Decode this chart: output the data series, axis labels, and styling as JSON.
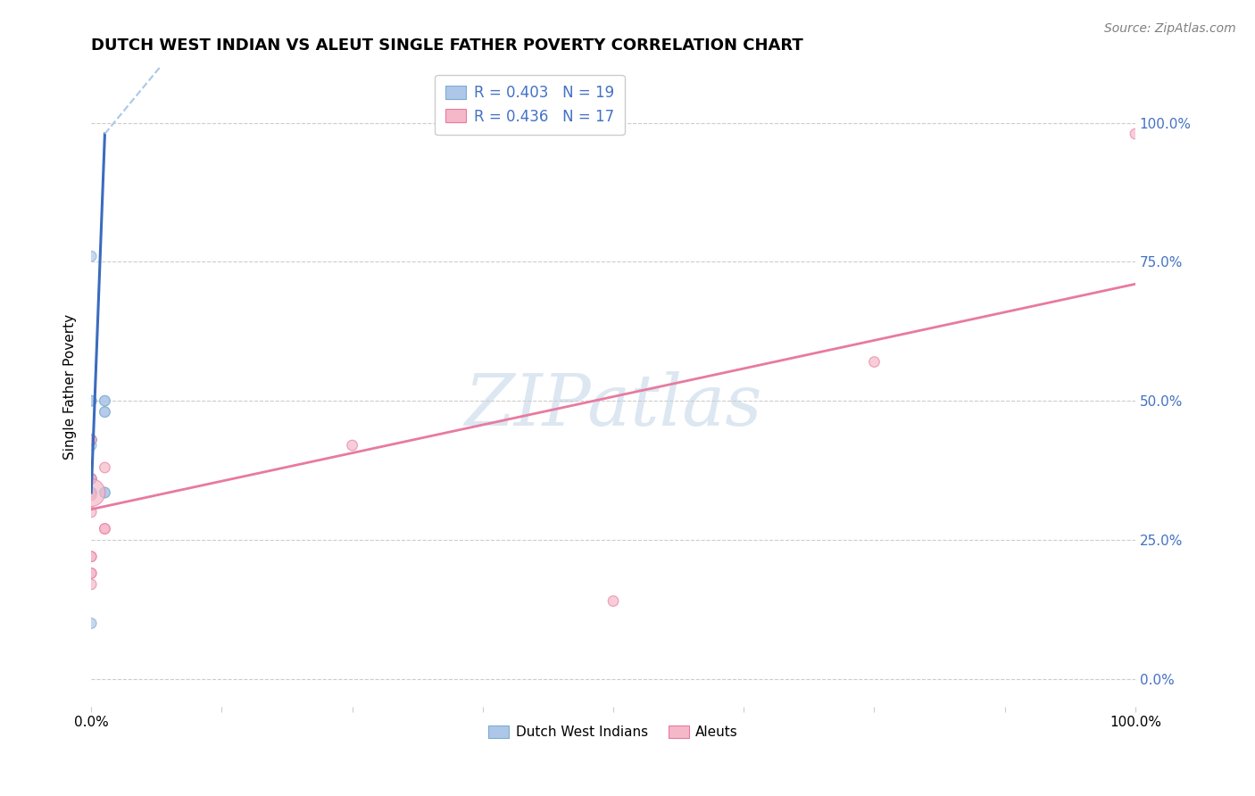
{
  "title": "DUTCH WEST INDIAN VS ALEUT SINGLE FATHER POVERTY CORRELATION CHART",
  "source": "Source: ZipAtlas.com",
  "ylabel": "Single Father Poverty",
  "watermark": "ZIPatlas",
  "xlim": [
    0.0,
    1.0
  ],
  "ylim": [
    -0.05,
    1.1
  ],
  "ytick_values": [
    0.0,
    0.25,
    0.5,
    0.75,
    1.0
  ],
  "xtick_positions": [
    0.0,
    0.125,
    0.25,
    0.375,
    0.5,
    0.625,
    0.75,
    0.875,
    1.0
  ],
  "legend_entries": [
    {
      "label": "R = 0.403   N = 19",
      "color": "#aec6e8",
      "edge": "#7aadd4"
    },
    {
      "label": "R = 0.436   N = 17",
      "color": "#f4b8c8",
      "edge": "#e87a9f"
    }
  ],
  "blue_scatter": {
    "x": [
      0.0,
      0.0,
      0.0,
      0.0,
      0.0,
      0.0,
      0.0,
      0.0,
      0.0,
      0.0,
      0.0,
      0.0,
      0.013,
      0.013,
      0.013,
      0.013,
      0.013,
      0.013,
      0.0
    ],
    "y": [
      0.335,
      0.335,
      0.335,
      0.36,
      0.36,
      0.42,
      0.43,
      0.43,
      0.43,
      0.5,
      0.5,
      0.76,
      0.48,
      0.48,
      0.5,
      0.5,
      0.335,
      0.335,
      0.1
    ],
    "sizes": [
      70,
      70,
      70,
      70,
      70,
      70,
      70,
      70,
      70,
      70,
      70,
      70,
      70,
      70,
      70,
      70,
      70,
      70,
      70
    ]
  },
  "pink_scatter": {
    "x": [
      0.0,
      0.0,
      0.0,
      0.0,
      0.0,
      0.0,
      0.0,
      0.0,
      0.0,
      0.0,
      0.013,
      0.013,
      0.013,
      0.5,
      0.75,
      1.0,
      0.25
    ],
    "y": [
      0.43,
      0.17,
      0.19,
      0.19,
      0.22,
      0.22,
      0.3,
      0.36,
      0.33,
      0.335,
      0.38,
      0.27,
      0.27,
      0.14,
      0.57,
      0.98,
      0.42
    ],
    "sizes": [
      70,
      70,
      70,
      70,
      70,
      70,
      70,
      70,
      70,
      500,
      70,
      70,
      70,
      70,
      70,
      70,
      70
    ]
  },
  "blue_trendline_solid": {
    "x": [
      0.0,
      0.013
    ],
    "y": [
      0.335,
      0.98
    ],
    "color": "#3a6bbf",
    "linewidth": 2.2,
    "linestyle": "solid"
  },
  "blue_trendline_dashed": {
    "x": [
      0.013,
      0.22
    ],
    "y": [
      0.98,
      1.45
    ],
    "color": "#aac8e8",
    "linewidth": 1.5,
    "linestyle": "dashed"
  },
  "pink_trendline": {
    "x": [
      0.0,
      1.0
    ],
    "y": [
      0.305,
      0.71
    ],
    "color": "#e87a9f",
    "linewidth": 2.0,
    "linestyle": "solid"
  },
  "blue_color": "#aec6e8",
  "pink_color": "#f4b8c8",
  "blue_edge": "#7aadd4",
  "pink_edge": "#e87a9f",
  "grid_color": "#cccccc",
  "background_color": "#ffffff",
  "title_fontsize": 13,
  "axis_label_fontsize": 11,
  "tick_fontsize": 11,
  "source_fontsize": 10,
  "watermark_color": "#c5d8ea",
  "watermark_fontsize": 58,
  "tick_color": "#4472c4"
}
